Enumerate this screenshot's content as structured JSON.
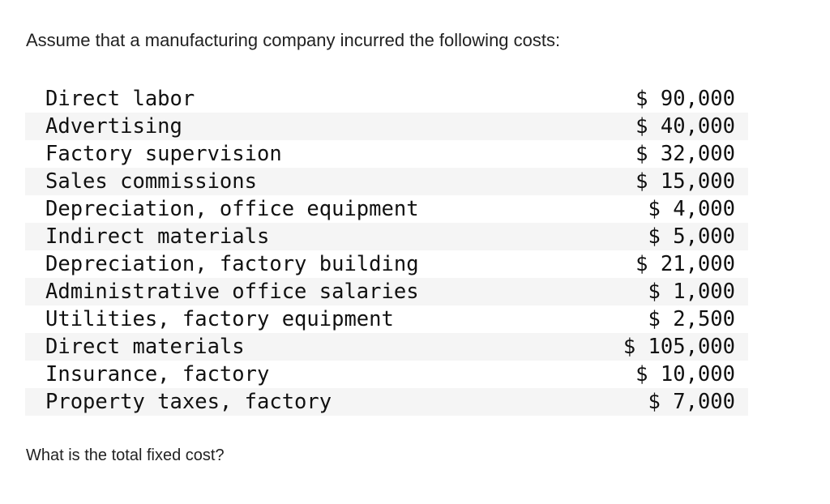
{
  "intro": "Assume that a manufacturing company incurred the following costs:",
  "costs": [
    {
      "label": "Direct labor",
      "amount": "$ 90,000"
    },
    {
      "label": "Advertising",
      "amount": "$ 40,000"
    },
    {
      "label": "Factory supervision",
      "amount": "$ 32,000"
    },
    {
      "label": "Sales commissions",
      "amount": "$ 15,000"
    },
    {
      "label": "Depreciation, office equipment",
      "amount": "$ 4,000"
    },
    {
      "label": "Indirect materials",
      "amount": "$ 5,000"
    },
    {
      "label": "Depreciation, factory building",
      "amount": "$ 21,000"
    },
    {
      "label": "Administrative office salaries",
      "amount": "$ 1,000"
    },
    {
      "label": "Utilities, factory equipment",
      "amount": "$ 2,500"
    },
    {
      "label": "Direct materials",
      "amount": "$ 105,000"
    },
    {
      "label": "Insurance, factory",
      "amount": "$ 10,000"
    },
    {
      "label": "Property taxes, factory",
      "amount": "$ 7,000"
    }
  ],
  "question": "What is the total fixed cost?"
}
